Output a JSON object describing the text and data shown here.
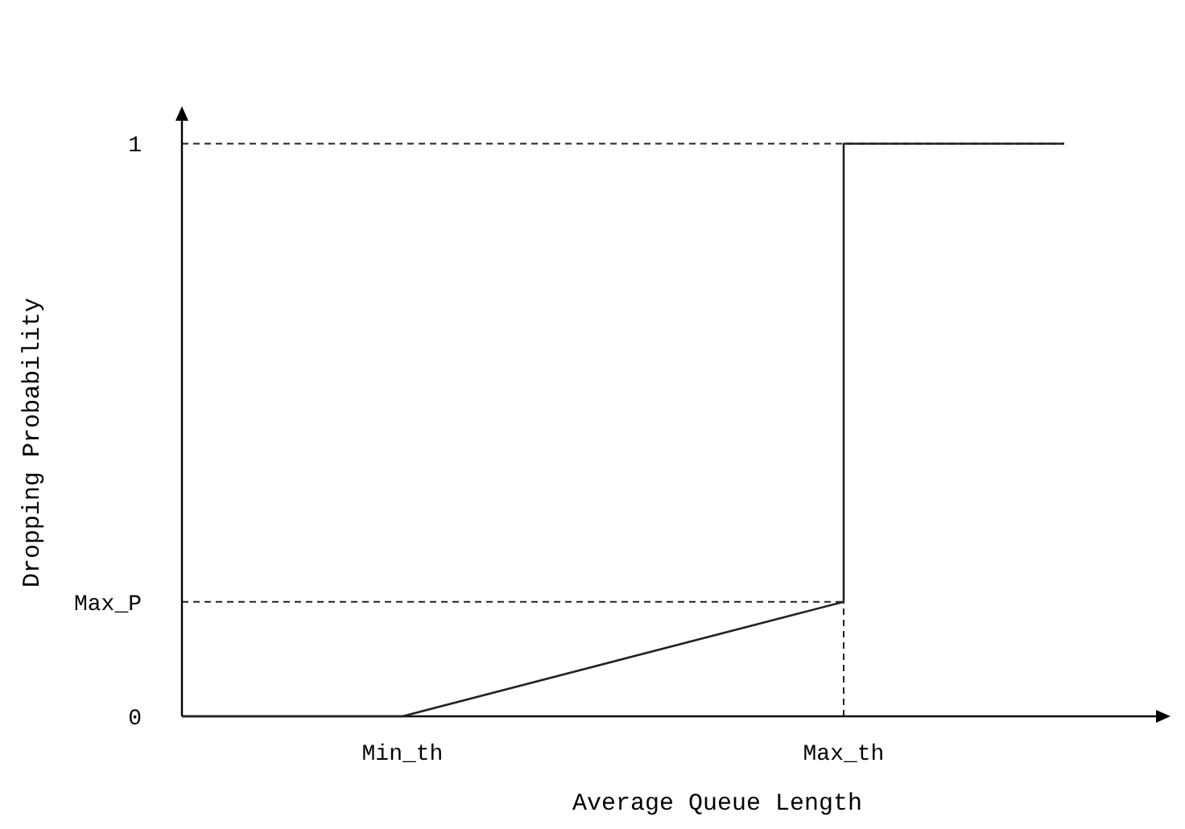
{
  "chart_data": {
    "type": "line",
    "xlabel": "Average Queue Length",
    "ylabel": "Dropping Probability",
    "categories": [
      null,
      "Min_th",
      null,
      "Max_th",
      null
    ],
    "ylim": [
      0,
      1.04
    ],
    "yticks": [
      0,
      {
        "value": 0.2,
        "label": "Max_P"
      },
      1
    ],
    "grid": false,
    "marker": "none",
    "line_style": "solid",
    "series": [
      {
        "color": "#222222",
        "values": [
          0,
          0,
          null,
          0.2,
          null
        ]
      },
      {
        "type": "step",
        "color": "#222222",
        "values": [
          null,
          null,
          null,
          0.2,
          1
        ]
      }
    ],
    "ref_lines": [
      {
        "axis": "y",
        "value": 1,
        "line_style": "dashed",
        "color": "#222222"
      },
      {
        "axis": "y",
        "value": 0.2,
        "line_style": "dashed",
        "color": "#222222"
      },
      {
        "axis": "x",
        "value": "Max_th",
        "line_style": "dashed",
        "color": "#222222"
      }
    ]
  }
}
